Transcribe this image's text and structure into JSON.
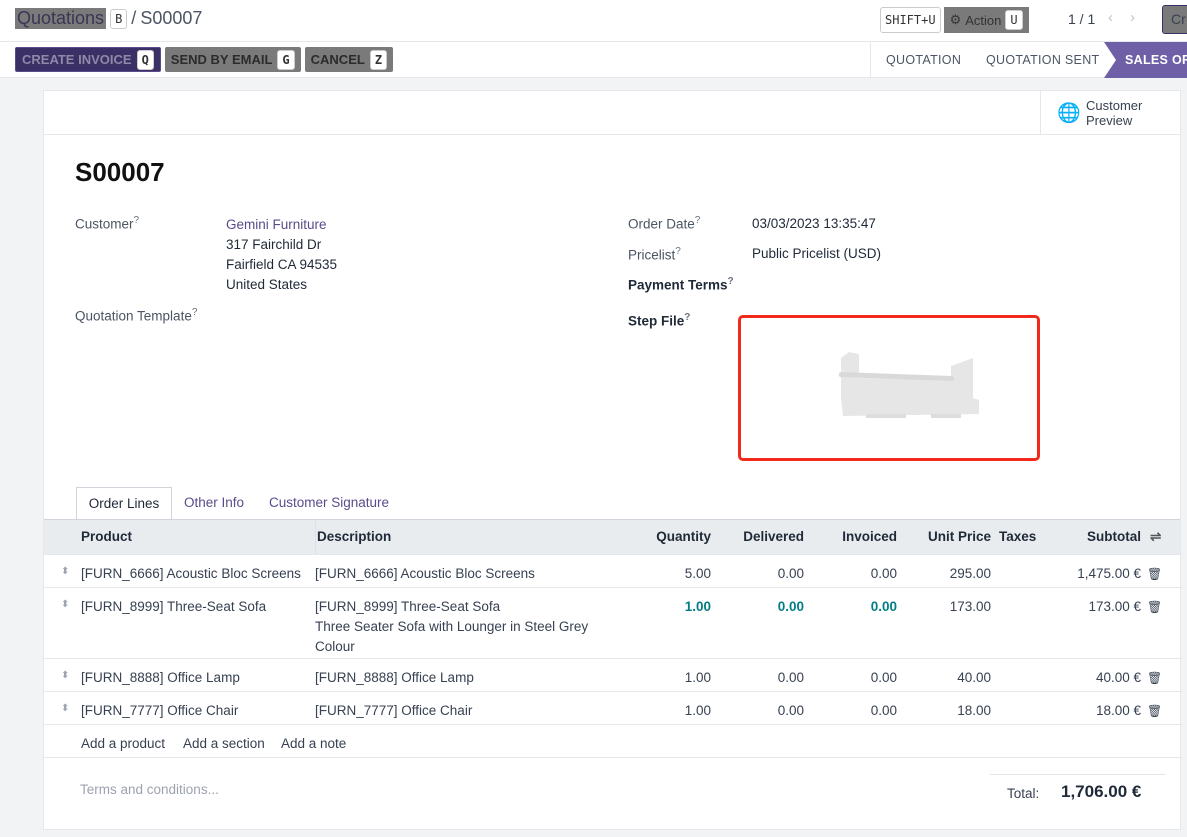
{
  "breadcrumb": {
    "parent": "Quotations",
    "current": "S00007",
    "parent_key": "B"
  },
  "header": {
    "shift_key": "SHIFT+U",
    "action_label": "Action",
    "action_key": "U",
    "pager": "1 / 1",
    "create_partial": "Cr"
  },
  "buttons": [
    {
      "label": "CREATE INVOICE",
      "key": "Q"
    },
    {
      "label": "SEND BY EMAIL",
      "key": "G"
    },
    {
      "label": "CANCEL",
      "key": "Z"
    }
  ],
  "statusbar": [
    "QUOTATION",
    "QUOTATION SENT",
    "SALES ORDER"
  ],
  "customer_preview": "Customer Preview",
  "title": "S00007",
  "fields": {
    "customer_label": "Customer",
    "customer_name": "Gemini Furniture",
    "address": [
      "317 Fairchild Dr",
      "Fairfield CA 94535",
      "United States"
    ],
    "template_label": "Quotation Template",
    "order_date_label": "Order Date",
    "order_date": "03/03/2023 13:35:47",
    "pricelist_label": "Pricelist",
    "pricelist": "Public Pricelist (USD)",
    "payment_terms_label": "Payment Terms",
    "step_file_label": "Step File",
    "help": "?"
  },
  "tabs": [
    "Order Lines",
    "Other Info",
    "Customer Signature"
  ],
  "table": {
    "headers": [
      "Product",
      "Description",
      "Quantity",
      "Delivered",
      "Invoiced",
      "Unit Price",
      "Taxes",
      "Subtotal"
    ],
    "rows": [
      {
        "product": "[FURN_6666] Acoustic Bloc Screens",
        "description": [
          "[FURN_6666] Acoustic Bloc Screens"
        ],
        "quantity": "5.00",
        "delivered": "0.00",
        "invoiced": "0.00",
        "unit_price": "295.00",
        "taxes": "",
        "subtotal": "1,475.00 €"
      },
      {
        "product": "[FURN_8999] Three-Seat Sofa",
        "description": [
          "[FURN_8999] Three-Seat Sofa",
          "Three Seater Sofa with Lounger in Steel Grey",
          "Colour"
        ],
        "quantity": "1.00",
        "delivered": "0.00",
        "invoiced": "0.00",
        "unit_price": "173.00",
        "taxes": "",
        "subtotal": "173.00 €"
      },
      {
        "product": "[FURN_8888] Office Lamp",
        "description": [
          "[FURN_8888] Office Lamp"
        ],
        "quantity": "1.00",
        "delivered": "0.00",
        "invoiced": "0.00",
        "unit_price": "40.00",
        "taxes": "",
        "subtotal": "40.00 €"
      },
      {
        "product": "[FURN_7777] Office Chair",
        "description": [
          "[FURN_7777] Office Chair"
        ],
        "quantity": "1.00",
        "delivered": "0.00",
        "invoiced": "0.00",
        "unit_price": "18.00",
        "taxes": "",
        "subtotal": "18.00 €"
      }
    ],
    "add_product": "Add a product",
    "add_section": "Add a section",
    "add_note": "Add a note"
  },
  "footer": {
    "terms_placeholder": "Terms and conditions...",
    "total_label": "Total:",
    "total": "1,706.00 €"
  },
  "colors": {
    "primary": "#3b3065",
    "status_active": "#6f5fa6",
    "highlight_border": "#f0291a",
    "link": "#5b4b8a"
  }
}
